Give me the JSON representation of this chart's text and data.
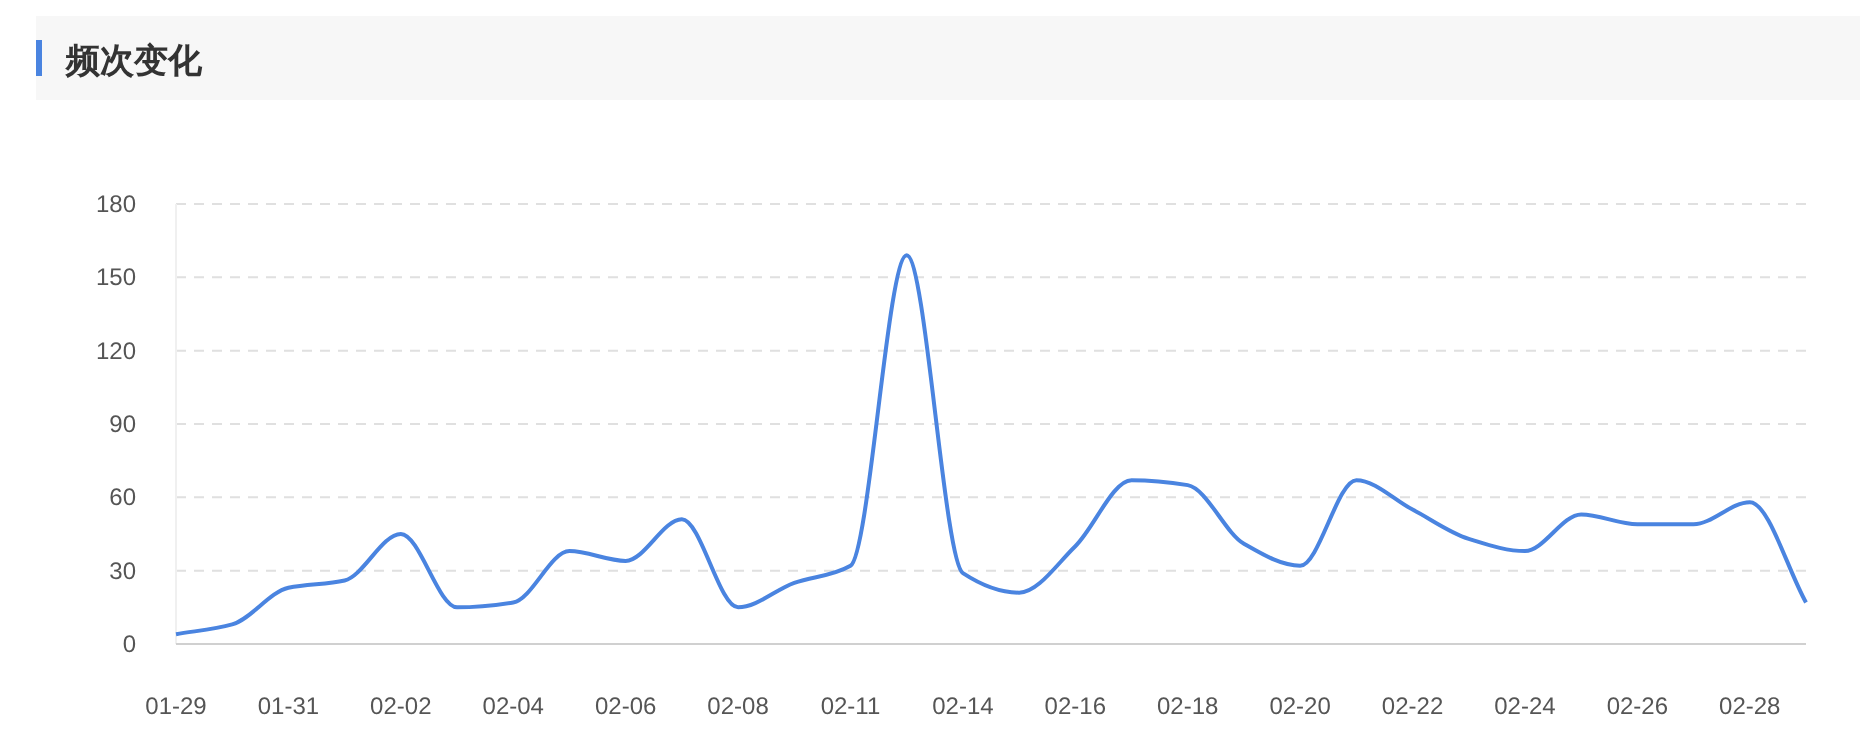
{
  "chart_data": {
    "type": "line",
    "title": "频次变化",
    "categories": [
      "01-29",
      null,
      "01-31",
      null,
      "02-02",
      null,
      "02-04",
      null,
      "02-06",
      null,
      "02-08",
      null,
      "02-11",
      null,
      "02-14",
      null,
      "02-16",
      null,
      "02-18",
      null,
      "02-20",
      null,
      "02-22",
      null,
      "02-24",
      null,
      "02-26",
      null,
      "02-28",
      null
    ],
    "series": [
      {
        "color": "#4a84e0",
        "values": [
          4,
          8,
          23,
          26,
          45,
          15,
          17,
          38,
          34,
          51,
          15,
          25,
          32,
          159,
          29,
          21,
          40,
          67,
          65,
          41,
          32,
          67,
          55,
          43,
          38,
          53,
          49,
          49,
          58,
          17
        ]
      }
    ],
    "ylim": [
      0,
      180
    ],
    "yticks": [
      0,
      30,
      60,
      90,
      120,
      150,
      180
    ],
    "grid": "y",
    "marker": "none",
    "line_style": "solid"
  }
}
